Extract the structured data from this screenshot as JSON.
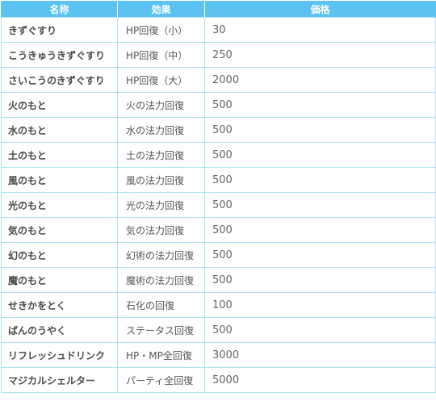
{
  "header": {
    "name": "名称",
    "effect": "効果",
    "price": "価格"
  },
  "rows": [
    {
      "name": "きずぐすり",
      "effect": "HP回復（小）",
      "price": "30"
    },
    {
      "name": "こうきゅうきずぐすり",
      "effect": "HP回復（中）",
      "price": "250"
    },
    {
      "name": "さいこうのきずぐすり",
      "effect": "HP回復（大）",
      "price": "2000"
    },
    {
      "name": "火のもと",
      "effect": "火の法力回復",
      "price": "500"
    },
    {
      "name": "水のもと",
      "effect": "水の法力回復",
      "price": "500"
    },
    {
      "name": "土のもと",
      "effect": "土の法力回復",
      "price": "500"
    },
    {
      "name": "風のもと",
      "effect": "風の法力回復",
      "price": "500"
    },
    {
      "name": "光のもと",
      "effect": "光の法力回復",
      "price": "500"
    },
    {
      "name": "気のもと",
      "effect": "気の法力回復",
      "price": "500"
    },
    {
      "name": "幻のもと",
      "effect": "幻術の法力回復",
      "price": "500"
    },
    {
      "name": "魔のもと",
      "effect": "魔術の法力回復",
      "price": "500"
    },
    {
      "name": "せきかをとく",
      "effect": "石化の回復",
      "price": "100"
    },
    {
      "name": "ばんのうやく",
      "effect": "ステータス回復",
      "price": "500"
    },
    {
      "name": "リフレッシュドリンク",
      "effect": "HP・MP全回復",
      "price": "3000"
    },
    {
      "name": "マジカルシェルター",
      "effect": "パーティ全回復",
      "price": "5000"
    }
  ],
  "colors": {
    "header_bg": "#5bc2f1",
    "grid_line": "#aee0f6"
  }
}
